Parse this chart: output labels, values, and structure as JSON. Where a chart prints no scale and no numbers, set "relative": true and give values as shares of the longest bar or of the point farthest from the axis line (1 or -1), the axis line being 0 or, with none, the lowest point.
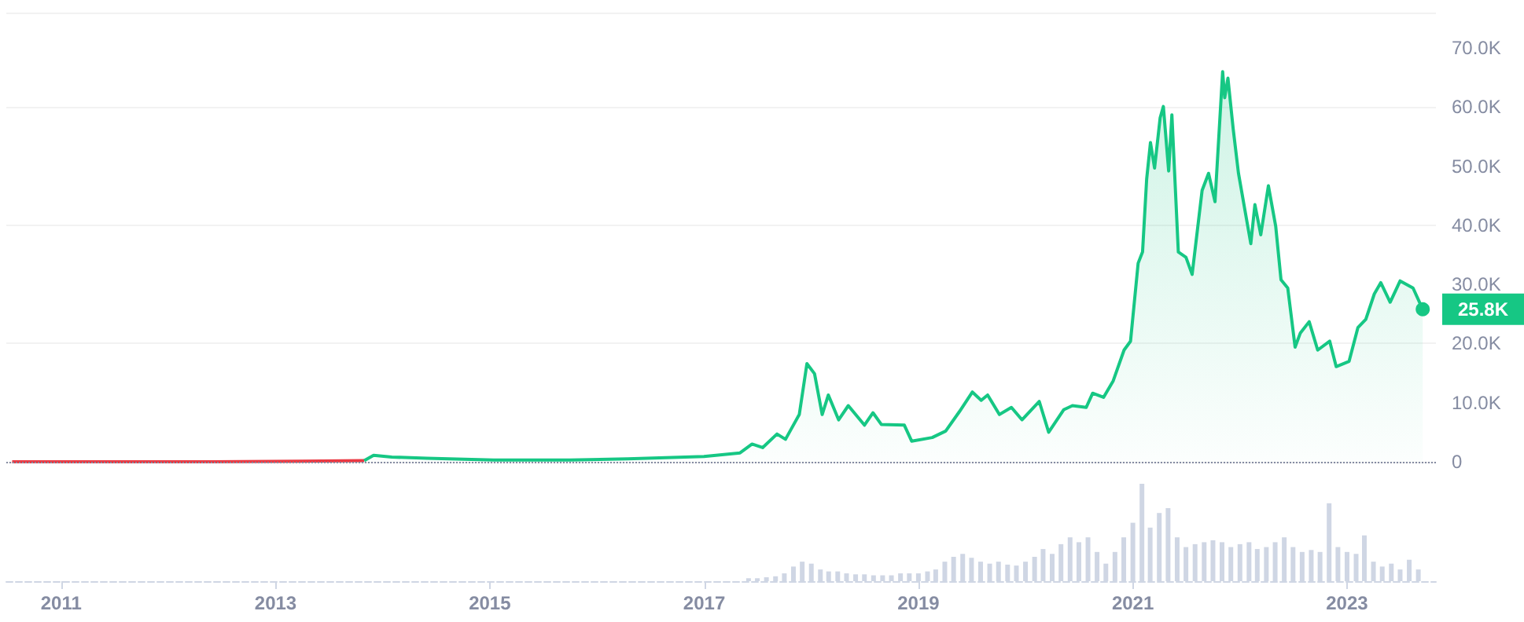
{
  "chart_data": [
    {
      "type": "line",
      "grid": "y",
      "tick_labels": "y",
      "marker": "none",
      "xlim": [
        "2010-06-28",
        "2023-10-31"
      ],
      "xticks": [
        "2011",
        "2013",
        "2015",
        "2017",
        "2019",
        "2021",
        "2023"
      ],
      "ylim": [
        0,
        76000
      ],
      "yticks": [
        0,
        {
          "value": 10000,
          "label": "10.0K"
        },
        {
          "value": 20000,
          "label": "20.0K"
        },
        {
          "value": 30000,
          "label": "30.0K"
        },
        {
          "value": 40000,
          "label": "40.0K"
        },
        {
          "value": 50000,
          "label": "50.0K"
        },
        {
          "value": 60000,
          "label": "60.0K"
        },
        {
          "value": 70000,
          "label": "70.0K"
        }
      ],
      "ref_lines": [
        {
          "axis": "y",
          "value": 0,
          "line_style": "dotted",
          "color": "#858ca2"
        }
      ],
      "annotations": [
        {
          "text": "25.8K",
          "x": "2023-09-16",
          "y": 25800
        }
      ],
      "series": [
        {
          "color": "#ea3943",
          "x": [
            "2010-07-18",
            "2011-06-01",
            "2012-06-01",
            "2013-04-01",
            "2013-10-30"
          ],
          "values": [
            0,
            0,
            0,
            100,
            200
          ]
        },
        {
          "type": "area",
          "color": "#16c784",
          "x": [
            "2013-10-30",
            "2013-12-01",
            "2014-02-01",
            "2014-06-01",
            "2015-01-15",
            "2015-10-01",
            "2016-04-15",
            "2016-12-31",
            "2017-05-03",
            "2017-06-13",
            "2017-07-19",
            "2017-09-06",
            "2017-10-05",
            "2017-11-21",
            "2017-12-17",
            "2018-01-12",
            "2018-02-07",
            "2018-02-28",
            "2018-04-04",
            "2018-05-07",
            "2018-07-01",
            "2018-07-30",
            "2018-08-28",
            "2018-11-14",
            "2018-12-09",
            "2019-02-17",
            "2019-04-04",
            "2019-05-21",
            "2019-07-04",
            "2019-08-03",
            "2019-08-25",
            "2019-10-04",
            "2019-11-14",
            "2019-12-20",
            "2020-02-17",
            "2020-03-20",
            "2020-05-10",
            "2020-06-09",
            "2020-07-26",
            "2020-08-17",
            "2020-09-23",
            "2020-10-26",
            "2020-12-02",
            "2020-12-24",
            "2021-01-19",
            "2021-02-03",
            "2021-02-17",
            "2021-03-02",
            "2021-03-16",
            "2021-04-04",
            "2021-04-15",
            "2021-05-03",
            "2021-05-14",
            "2021-06-05",
            "2021-07-01",
            "2021-07-22",
            "2021-08-25",
            "2021-09-16",
            "2021-10-08",
            "2021-11-03",
            "2021-11-10",
            "2021-11-21",
            "2021-12-09",
            "2021-12-27",
            "2022-02-07",
            "2022-02-21",
            "2022-03-13",
            "2022-04-08",
            "2022-05-03",
            "2022-05-21",
            "2022-06-13",
            "2022-07-08",
            "2022-07-26",
            "2022-08-25",
            "2022-09-23",
            "2022-11-03",
            "2022-11-25",
            "2023-01-08",
            "2023-02-07",
            "2023-03-06",
            "2023-04-04",
            "2023-04-26",
            "2023-05-28",
            "2023-07-01",
            "2023-08-14",
            "2023-09-16"
          ],
          "values": [
            200,
            1100,
            800,
            600,
            300,
            300,
            500,
            900,
            1500,
            3000,
            2400,
            4700,
            3800,
            8000,
            16600,
            14900,
            8000,
            11300,
            7100,
            9500,
            6200,
            8300,
            6300,
            6200,
            3500,
            4100,
            5200,
            8500,
            11800,
            10400,
            11300,
            8000,
            9200,
            7100,
            10200,
            5000,
            8800,
            9500,
            9200,
            11600,
            10900,
            13700,
            18900,
            20400,
            33600,
            35500,
            47800,
            54000,
            49700,
            58200,
            60100,
            49200,
            58700,
            35500,
            34600,
            31700,
            45900,
            48800,
            44000,
            66000,
            61600,
            64900,
            56300,
            48800,
            36900,
            43500,
            38400,
            46700,
            39800,
            30800,
            29400,
            19400,
            21800,
            23700,
            18900,
            20400,
            16100,
            17000,
            22700,
            24100,
            28400,
            30300,
            27000,
            30600,
            29400,
            25800
          ]
        }
      ]
    },
    {
      "type": "bar",
      "relative": true,
      "grid": false,
      "tick_labels": "x",
      "xlim": [
        "2010-06-28",
        "2023-10-31"
      ],
      "xticks": [
        "2011",
        "2013",
        "2015",
        "2017",
        "2019",
        "2021",
        "2023"
      ],
      "series": [
        {
          "color": "#cfd6e4",
          "x": [
            "2017-06",
            "2017-07",
            "2017-08",
            "2017-09",
            "2017-10",
            "2017-11",
            "2017-12",
            "2018-01",
            "2018-02",
            "2018-03",
            "2018-04",
            "2018-05",
            "2018-06",
            "2018-07",
            "2018-08",
            "2018-09",
            "2018-10",
            "2018-11",
            "2018-12",
            "2019-01",
            "2019-02",
            "2019-03",
            "2019-04",
            "2019-05",
            "2019-06",
            "2019-07",
            "2019-08",
            "2019-09",
            "2019-10",
            "2019-11",
            "2019-12",
            "2020-01",
            "2020-02",
            "2020-03",
            "2020-04",
            "2020-05",
            "2020-06",
            "2020-07",
            "2020-08",
            "2020-09",
            "2020-10",
            "2020-11",
            "2020-12",
            "2021-01",
            "2021-02",
            "2021-03",
            "2021-04",
            "2021-05",
            "2021-06",
            "2021-07",
            "2021-08",
            "2021-09",
            "2021-10",
            "2021-11",
            "2021-12",
            "2022-01",
            "2022-02",
            "2022-03",
            "2022-04",
            "2022-05",
            "2022-06",
            "2022-07",
            "2022-08",
            "2022-09",
            "2022-10",
            "2022-11",
            "2022-12",
            "2023-01",
            "2023-02",
            "2023-03",
            "2023-04",
            "2023-05",
            "2023-06",
            "2023-07",
            "2023-08",
            "2023-09"
          ],
          "values": [
            0.03,
            0.03,
            0.04,
            0.05,
            0.08,
            0.15,
            0.2,
            0.18,
            0.12,
            0.1,
            0.1,
            0.08,
            0.07,
            0.07,
            0.06,
            0.06,
            0.06,
            0.08,
            0.08,
            0.08,
            0.1,
            0.12,
            0.2,
            0.25,
            0.28,
            0.24,
            0.2,
            0.18,
            0.2,
            0.17,
            0.16,
            0.2,
            0.25,
            0.33,
            0.28,
            0.38,
            0.45,
            0.4,
            0.45,
            0.3,
            0.18,
            0.3,
            0.45,
            0.6,
            1.0,
            0.55,
            0.7,
            0.75,
            0.45,
            0.35,
            0.38,
            0.4,
            0.42,
            0.4,
            0.35,
            0.38,
            0.4,
            0.33,
            0.35,
            0.4,
            0.45,
            0.35,
            0.3,
            0.32,
            0.3,
            0.8,
            0.35,
            0.3,
            0.28,
            0.47,
            0.2,
            0.15,
            0.18,
            0.12,
            0.22,
            0.12
          ]
        }
      ]
    }
  ]
}
